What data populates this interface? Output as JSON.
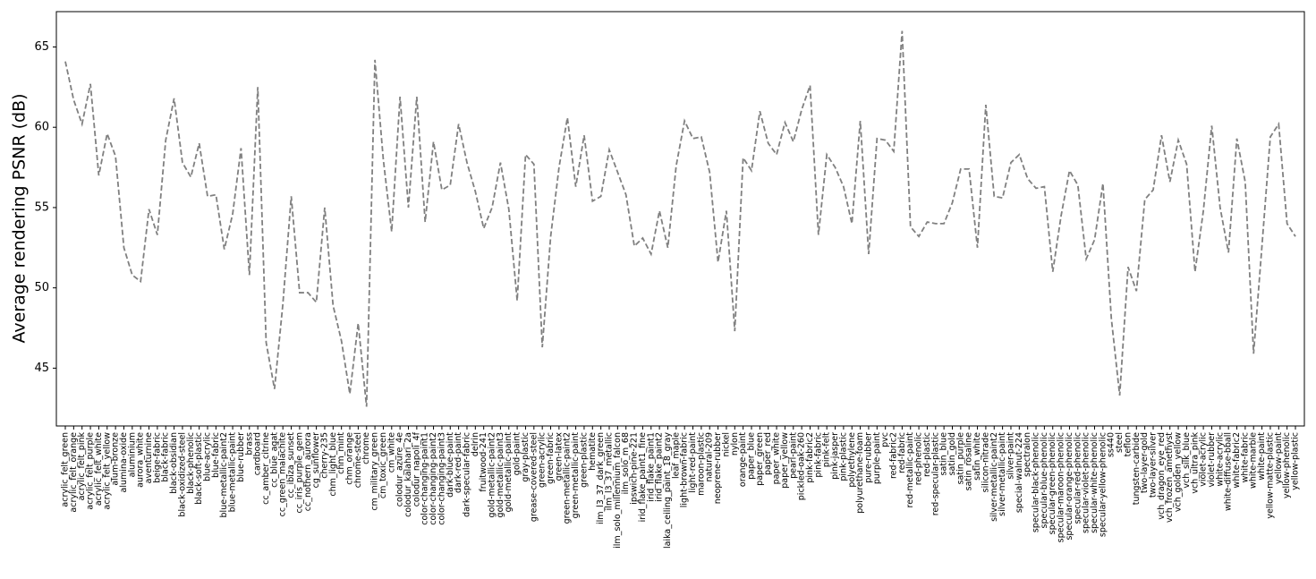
{
  "chart_data": {
    "type": "line",
    "ylabel": "Average rendering PSNR (dB)",
    "categories": [
      "acrylic_felt_green",
      "acrylic_felt_orange",
      "acrylic_felt_pink",
      "acrylic_felt_purple",
      "acrylic_felt_white",
      "acrylic_felt_yellow",
      "alum-bronze",
      "alumina-oxide",
      "aluminium",
      "aurora_white",
      "aventurnine",
      "beige-fabric",
      "black-fabric",
      "black-obsidian",
      "black-oxidized-steel",
      "black-phenolic",
      "black-soft-plastic",
      "blue-acrylic",
      "blue-fabric",
      "blue-metallic-paint2",
      "blue-metallic-paint",
      "blue-rubber",
      "brass",
      "cardboard",
      "cc_amber_citrine",
      "cc_blue_agat",
      "cc_green_malachite",
      "cc_ibiza_sunset",
      "cc_iris_purple_gem",
      "cc_nothern_aurora",
      "cg_sunflower",
      "cherry-235",
      "chm_light_blue",
      "chm_mint",
      "chm_orange",
      "chrome-steel",
      "chrome",
      "cm_military_green",
      "cm_toxic_green",
      "cm_white",
      "colodur_azure_4e",
      "colodur_kalahari_2a",
      "colodur_napoli_4f",
      "color-changing-paint1",
      "color-changing-paint2",
      "color-changing-paint3",
      "dark-blue-paint",
      "dark-red-paint",
      "dark-specular-fabric",
      "delrin",
      "fruitwood-241",
      "gold-metallic-paint2",
      "gold-metallic-paint3",
      "gold-metallic-paint",
      "gold-paint",
      "gray-plastic",
      "grease-covered-steel",
      "green-acrylic",
      "green-fabric",
      "green-latex",
      "green-metallic-paint2",
      "green-metallic-paint",
      "green-plastic",
      "hematite",
      "ilm_l3_37_dark_green",
      "ilm_l3_37_metallic",
      "ilm_solo_millennium_falcon",
      "ilm_solo_m_68",
      "ipswich-pine-221",
      "irid_flake_paint1_fine",
      "irid_flake_paint1",
      "irid_flake_paint2",
      "laika_ceiling_paint_18_gray",
      "leaf_maple",
      "light-brown-fabric",
      "light-red-paint",
      "maroon-plastic",
      "natural-209",
      "neoprene-rubber",
      "nickel",
      "nylon",
      "orange-paint",
      "paper_blue",
      "paper_green",
      "paper_red",
      "paper_white",
      "paper_yellow",
      "pearl-paint",
      "pickled-oak-260",
      "pink-fabric2",
      "pink-fabric",
      "pink-felt",
      "pink-jasper",
      "pink-plastic",
      "polyethylene",
      "polyurethane-foam",
      "pure-rubber",
      "purple-paint",
      "pvc",
      "red-fabric2",
      "red-fabric",
      "red-metallic-paint",
      "red-phenolic",
      "red-plastic",
      "red-specular-plastic",
      "satin_blue",
      "satin_gold",
      "satin_purple",
      "satin_rosaline",
      "satin_white",
      "silicon-nitrade",
      "silver-metallic-paint2",
      "silver-metallic-paint",
      "silver-paint",
      "special-walnut-224",
      "spectralon",
      "specular-black-phenolic",
      "specular-blue-phenolic",
      "specular-green-phenolic",
      "specular-maroon-phenolic",
      "specular-orange-phenolic",
      "specular-red-phenolic",
      "specular-violet-phenolic",
      "specular-white-phenolic",
      "specular-yellow-phenolic",
      "ss440",
      "steel",
      "teflon",
      "tungsten-carbide",
      "two-layer-gold",
      "two-layer-silver",
      "vch_dragon_eye_red",
      "vch_frozen_amethyst",
      "vch_golden_yellow",
      "vch_silk_blue",
      "vch_ultra_pink",
      "violet-acrylic",
      "violet-rubber",
      "white-acrylic",
      "white-diffuse-bball",
      "white-fabric2",
      "white-fabric",
      "white-marble",
      "white-paint",
      "yellow-matte-plastic",
      "yellow-paint",
      "yellow-phenolic",
      "yellow-plastic"
    ],
    "values": [
      64.1,
      61.7,
      60.2,
      62.7,
      57.0,
      59.6,
      58.2,
      52.5,
      50.8,
      50.4,
      54.9,
      53.3,
      59.2,
      61.8,
      57.8,
      56.9,
      59.0,
      55.7,
      55.8,
      52.4,
      54.6,
      58.7,
      50.8,
      62.5,
      46.6,
      43.7,
      49.0,
      55.7,
      49.7,
      49.7,
      49.1,
      55.0,
      48.9,
      46.7,
      43.4,
      47.8,
      42.6,
      64.2,
      58.0,
      53.5,
      61.9,
      55.0,
      61.9,
      54.1,
      59.1,
      56.1,
      56.4,
      60.2,
      57.8,
      56.0,
      53.7,
      55.0,
      57.8,
      54.9,
      49.2,
      58.3,
      57.7,
      46.3,
      53.2,
      57.5,
      60.6,
      56.3,
      59.5,
      55.4,
      55.7,
      58.6,
      57.2,
      55.8,
      52.6,
      53.1,
      52.1,
      54.8,
      52.5,
      57.6,
      60.4,
      59.3,
      59.4,
      57.2,
      51.6,
      54.8,
      47.3,
      58.1,
      57.3,
      61.0,
      59.0,
      58.3,
      60.3,
      59.1,
      61.1,
      62.6,
      53.3,
      58.3,
      57.5,
      56.3,
      54.0,
      60.4,
      52.1,
      59.3,
      59.2,
      58.5,
      66.0,
      53.8,
      53.2,
      54.1,
      54.0,
      54.0,
      55.3,
      57.4,
      57.4,
      52.5,
      61.4,
      55.7,
      55.6,
      57.8,
      58.3,
      56.8,
      56.2,
      56.3,
      51.0,
      54.5,
      57.3,
      56.4,
      51.8,
      53.0,
      56.5,
      48.1,
      43.3,
      51.3,
      49.8,
      55.5,
      56.1,
      59.5,
      56.6,
      59.2,
      57.7,
      51.0,
      54.8,
      60.1,
      55.0,
      52.2,
      59.3,
      56.6,
      45.9,
      52.6,
      59.4,
      60.2,
      54.0,
      53.2
    ],
    "color": "#808080",
    "linestyle": "dashed",
    "ylim": [
      41.4,
      67.2
    ],
    "yticks": [
      45,
      50,
      55,
      60,
      65
    ],
    "grid": false
  }
}
